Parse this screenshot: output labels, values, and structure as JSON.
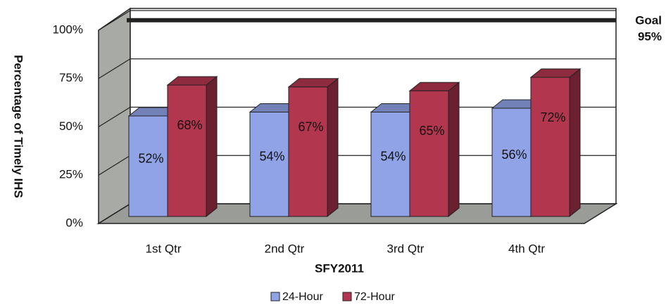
{
  "chart_data": {
    "type": "bar3d",
    "categories": [
      "1st Qtr",
      "2nd Qtr",
      "3rd Qtr",
      "4th Qtr"
    ],
    "series": [
      {
        "name": "24-Hour",
        "color": "#8fa3e6",
        "values": [
          52,
          54,
          54,
          56
        ],
        "value_labels": [
          "52%",
          "54%",
          "54%",
          "56%"
        ]
      },
      {
        "name": "72-Hour",
        "color": "#b3364f",
        "values": [
          68,
          67,
          65,
          72
        ],
        "value_labels": [
          "68%",
          "67%",
          "65%",
          "72%"
        ]
      }
    ],
    "ylim": [
      0,
      100
    ],
    "yticks": [
      {
        "value": 0,
        "label": "0%"
      },
      {
        "value": 25,
        "label": "25%"
      },
      {
        "value": 50,
        "label": "50%"
      },
      {
        "value": 75,
        "label": "75%"
      },
      {
        "value": 100,
        "label": "100%"
      }
    ],
    "grid": true,
    "ylabel": "Percentage of Timely IHS",
    "xlabel": "SFY2011",
    "goal": {
      "label": "Goal",
      "value": 95,
      "value_label": "95%"
    },
    "legend": "bottom"
  }
}
